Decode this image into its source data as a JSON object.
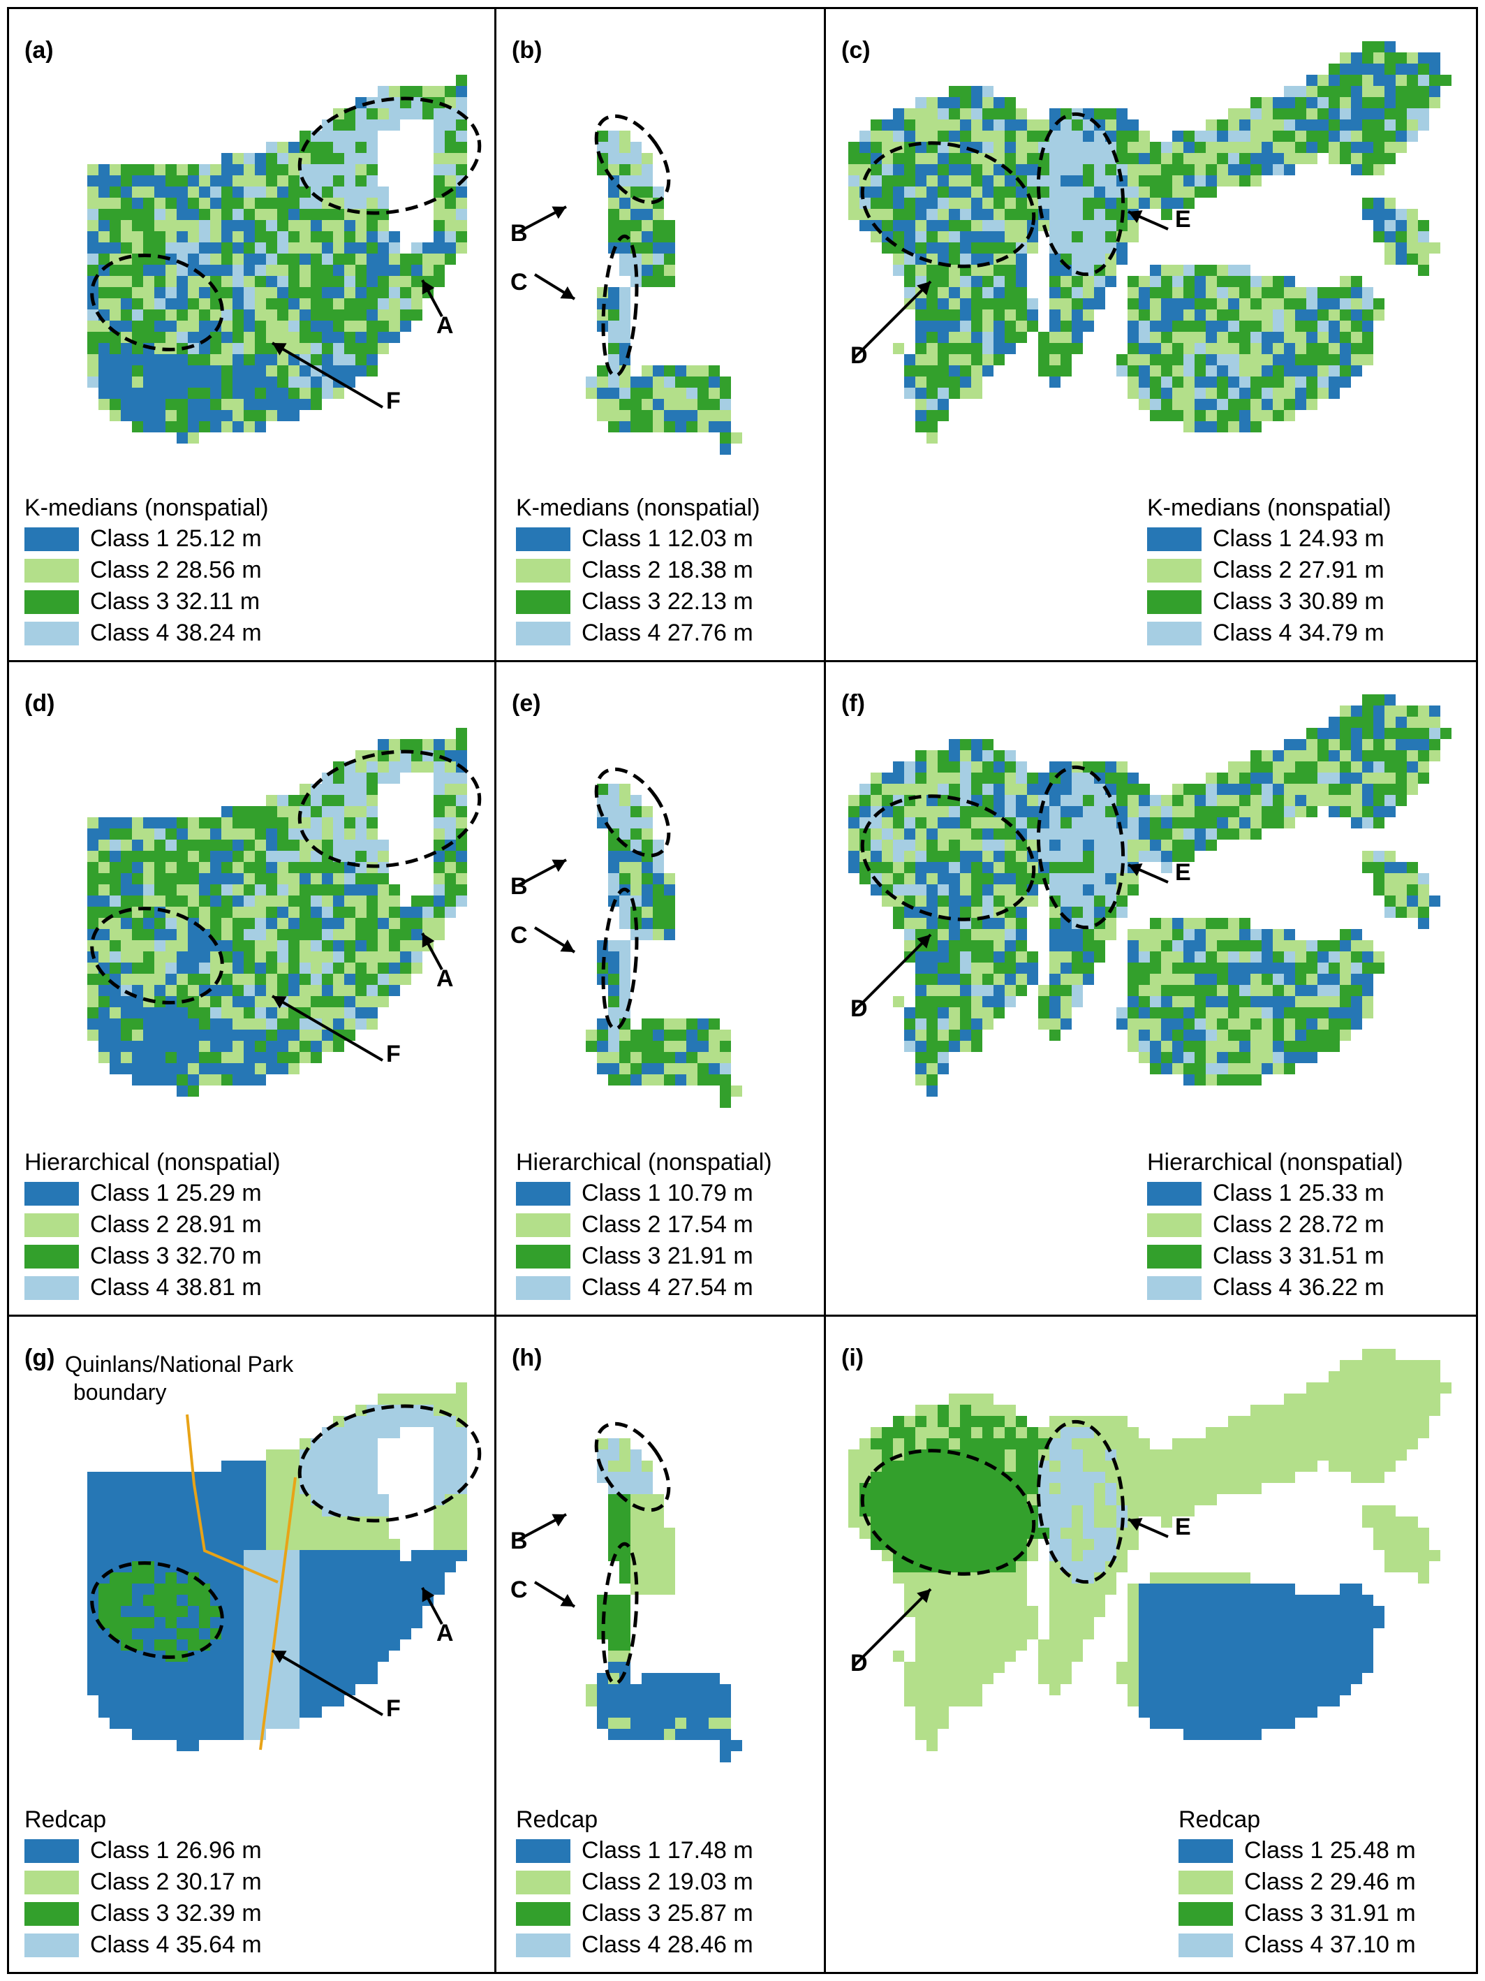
{
  "colors": {
    "class1": "#2677b5",
    "class2": "#b3df8a",
    "class3": "#33a02c",
    "class4": "#a6cee3",
    "boundary": "#e8a317",
    "ellipse": "#000000"
  },
  "boundary_label": [
    "Quinlans/National Park",
    "boundary"
  ],
  "panels": [
    {
      "id": "a",
      "label": "(a)",
      "method": "K-medians (nonspatial)",
      "classes": [
        {
          "name": "Class 1",
          "value": "25.12 m"
        },
        {
          "name": "Class 2",
          "value": "28.56 m"
        },
        {
          "name": "Class 3",
          "value": "32.11 m"
        },
        {
          "name": "Class 4",
          "value": "38.24 m"
        }
      ],
      "annotations": [
        "A",
        "F"
      ]
    },
    {
      "id": "b",
      "label": "(b)",
      "method": "K-medians (nonspatial)",
      "classes": [
        {
          "name": "Class 1",
          "value": "12.03 m"
        },
        {
          "name": "Class 2",
          "value": "18.38 m"
        },
        {
          "name": "Class 3",
          "value": "22.13 m"
        },
        {
          "name": "Class 4",
          "value": "27.76 m"
        }
      ],
      "annotations": [
        "B",
        "C"
      ]
    },
    {
      "id": "c",
      "label": "(c)",
      "method": "K-medians (nonspatial)",
      "classes": [
        {
          "name": "Class 1",
          "value": "24.93 m"
        },
        {
          "name": "Class 2",
          "value": "27.91 m"
        },
        {
          "name": "Class 3",
          "value": "30.89 m"
        },
        {
          "name": "Class 4",
          "value": "34.79 m"
        }
      ],
      "annotations": [
        "D",
        "E"
      ]
    },
    {
      "id": "d",
      "label": "(d)",
      "method": "Hierarchical (nonspatial)",
      "classes": [
        {
          "name": "Class 1",
          "value": "25.29 m"
        },
        {
          "name": "Class 2",
          "value": "28.91 m"
        },
        {
          "name": "Class 3",
          "value": "32.70 m"
        },
        {
          "name": "Class 4",
          "value": "38.81 m"
        }
      ],
      "annotations": [
        "A",
        "F"
      ]
    },
    {
      "id": "e",
      "label": "(e)",
      "method": "Hierarchical (nonspatial)",
      "classes": [
        {
          "name": "Class 1",
          "value": "10.79 m"
        },
        {
          "name": "Class 2",
          "value": "17.54 m"
        },
        {
          "name": "Class 3",
          "value": "21.91 m"
        },
        {
          "name": "Class 4",
          "value": "27.54 m"
        }
      ],
      "annotations": [
        "B",
        "C"
      ]
    },
    {
      "id": "f",
      "label": "(f)",
      "method": "Hierarchical (nonspatial)",
      "classes": [
        {
          "name": "Class 1",
          "value": "25.33 m"
        },
        {
          "name": "Class 2",
          "value": "28.72 m"
        },
        {
          "name": "Class 3",
          "value": "31.51 m"
        },
        {
          "name": "Class 4",
          "value": "36.22 m"
        }
      ],
      "annotations": [
        "D",
        "E"
      ]
    },
    {
      "id": "g",
      "label": "(g)",
      "method": "Redcap",
      "classes": [
        {
          "name": "Class 1",
          "value": "26.96 m"
        },
        {
          "name": "Class 2",
          "value": "30.17 m"
        },
        {
          "name": "Class 3",
          "value": "32.39 m"
        },
        {
          "name": "Class 4",
          "value": "35.64 m"
        }
      ],
      "annotations": [
        "A",
        "F"
      ]
    },
    {
      "id": "h",
      "label": "(h)",
      "method": "Redcap",
      "classes": [
        {
          "name": "Class 1",
          "value": "17.48 m"
        },
        {
          "name": "Class 2",
          "value": "19.03 m"
        },
        {
          "name": "Class 3",
          "value": "25.87 m"
        },
        {
          "name": "Class 4",
          "value": "28.46 m"
        }
      ],
      "annotations": [
        "B",
        "C"
      ]
    },
    {
      "id": "i",
      "label": "(i)",
      "method": "Redcap",
      "classes": [
        {
          "name": "Class 1",
          "value": "25.48 m"
        },
        {
          "name": "Class 2",
          "value": "29.46 m"
        },
        {
          "name": "Class 3",
          "value": "31.91 m"
        },
        {
          "name": "Class 4",
          "value": "37.10 m"
        }
      ],
      "annotations": [
        "D",
        "E"
      ]
    }
  ]
}
